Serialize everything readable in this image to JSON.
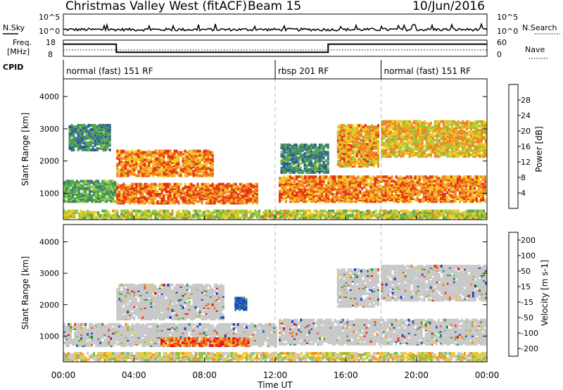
{
  "header": {
    "station": "Christmas Valley West (fitACF)",
    "beam": "Beam 15",
    "date": "10/Jun/2016"
  },
  "top_panels": {
    "nsky_label": "N.Sky",
    "nsearch_label": "N.Search",
    "tick_high": "10^5",
    "tick_low": "10^0",
    "freq_label_1": "Freq.",
    "freq_label_2": "[MHz]",
    "freq_ticks": [
      "18",
      "8"
    ],
    "nave_ticks": [
      "60",
      "0"
    ],
    "nave_label": "Nave",
    "cpid_label": "CPID",
    "cpid_segments": [
      {
        "label": "normal (fast) 151 RF",
        "start_h": 0
      },
      {
        "label": "rbsp 201 RF",
        "start_h": 12
      },
      {
        "label": "normal (fast) 151 RF",
        "start_h": 18
      }
    ],
    "freq_steps": [
      {
        "from_h": 0,
        "to_h": 3,
        "level": 0.75
      },
      {
        "from_h": 3,
        "to_h": 15,
        "level": 0.25
      },
      {
        "from_h": 15,
        "to_h": 24,
        "level": 0.75
      }
    ]
  },
  "chart_data": [
    {
      "type": "heatmap",
      "quantity": "Power",
      "ylabel": "Slant Range [km]",
      "xlabel": "",
      "xlim": [
        0,
        24
      ],
      "ylim": [
        180,
        4550
      ],
      "yticks": [
        1000,
        2000,
        3000,
        4000
      ],
      "colorbar": {
        "label": "Power [dB]",
        "ticks": [
          "4",
          "8",
          "12",
          "16",
          "20",
          "24",
          "28"
        ],
        "colors": [
          "#1a1aff",
          "#2a4da8",
          "#3c7f6e",
          "#4fa84f",
          "#96c83c",
          "#f0c820",
          "#f08020",
          "#e83010"
        ]
      },
      "bands": [
        {
          "t0": 0.0,
          "t1": 24.0,
          "r0": 180,
          "r1": 420,
          "level": 0.6
        },
        {
          "t0": 0.0,
          "t1": 3.0,
          "r0": 700,
          "r1": 1350,
          "level": 0.45
        },
        {
          "t0": 3.0,
          "t1": 11.0,
          "r0": 650,
          "r1": 1250,
          "level": 0.85
        },
        {
          "t0": 3.0,
          "t1": 8.5,
          "r0": 1500,
          "r1": 2300,
          "level": 0.8
        },
        {
          "t0": 0.3,
          "t1": 2.7,
          "r0": 2300,
          "r1": 3100,
          "level": 0.35
        },
        {
          "t0": 12.2,
          "t1": 24.0,
          "r0": 700,
          "r1": 1500,
          "level": 0.8
        },
        {
          "t0": 15.5,
          "t1": 17.8,
          "r0": 1800,
          "r1": 3100,
          "level": 0.75
        },
        {
          "t0": 18.0,
          "t1": 24.0,
          "r0": 2100,
          "r1": 3200,
          "level": 0.7
        },
        {
          "t0": 12.3,
          "t1": 15.0,
          "r0": 1600,
          "r1": 2500,
          "level": 0.35
        }
      ]
    },
    {
      "type": "heatmap",
      "quantity": "Velocity",
      "ylabel": "Slant Range [km]",
      "xlabel": "Time UT",
      "xlim": [
        0,
        24
      ],
      "ylim": [
        180,
        4550
      ],
      "yticks": [
        1000,
        2000,
        3000,
        4000
      ],
      "xticks": [
        "00:00",
        "04:00",
        "08:00",
        "12:00",
        "16:00",
        "20:00",
        "00:00"
      ],
      "colorbar": {
        "label": "Velocity [m s-1]",
        "ticks": [
          "200",
          "100",
          "50",
          "15",
          "-15",
          "-50",
          "-100",
          "-200"
        ],
        "colors": [
          "#1a3cc8",
          "#2a6ea0",
          "#3c9650",
          "#78c83c",
          "#c8c8c8",
          "#f0c830",
          "#f09020",
          "#f05018",
          "#e81010"
        ]
      },
      "bands": [
        {
          "t0": 0.0,
          "t1": 24.0,
          "r0": 180,
          "r1": 420,
          "level": 0.55
        },
        {
          "t0": 0.0,
          "t1": 12.0,
          "r0": 650,
          "r1": 1350,
          "level": 0.5
        },
        {
          "t0": 3.0,
          "t1": 9.0,
          "r0": 1500,
          "r1": 2600,
          "level": 0.5
        },
        {
          "t0": 12.2,
          "t1": 24.0,
          "r0": 700,
          "r1": 1500,
          "level": 0.5
        },
        {
          "t0": 15.5,
          "t1": 17.8,
          "r0": 1900,
          "r1": 3100,
          "level": 0.5
        },
        {
          "t0": 18.0,
          "t1": 24.0,
          "r0": 2100,
          "r1": 3200,
          "level": 0.5
        },
        {
          "t0": 5.5,
          "t1": 10.5,
          "r0": 650,
          "r1": 900,
          "level": 0.8
        },
        {
          "t0": 9.7,
          "t1": 10.4,
          "r0": 1800,
          "r1": 2200,
          "level": 0.1
        }
      ]
    }
  ],
  "axis": {
    "time_label": "Time UT",
    "xticks": [
      "00:00",
      "04:00",
      "08:00",
      "12:00",
      "16:00",
      "20:00",
      "00:00"
    ]
  }
}
